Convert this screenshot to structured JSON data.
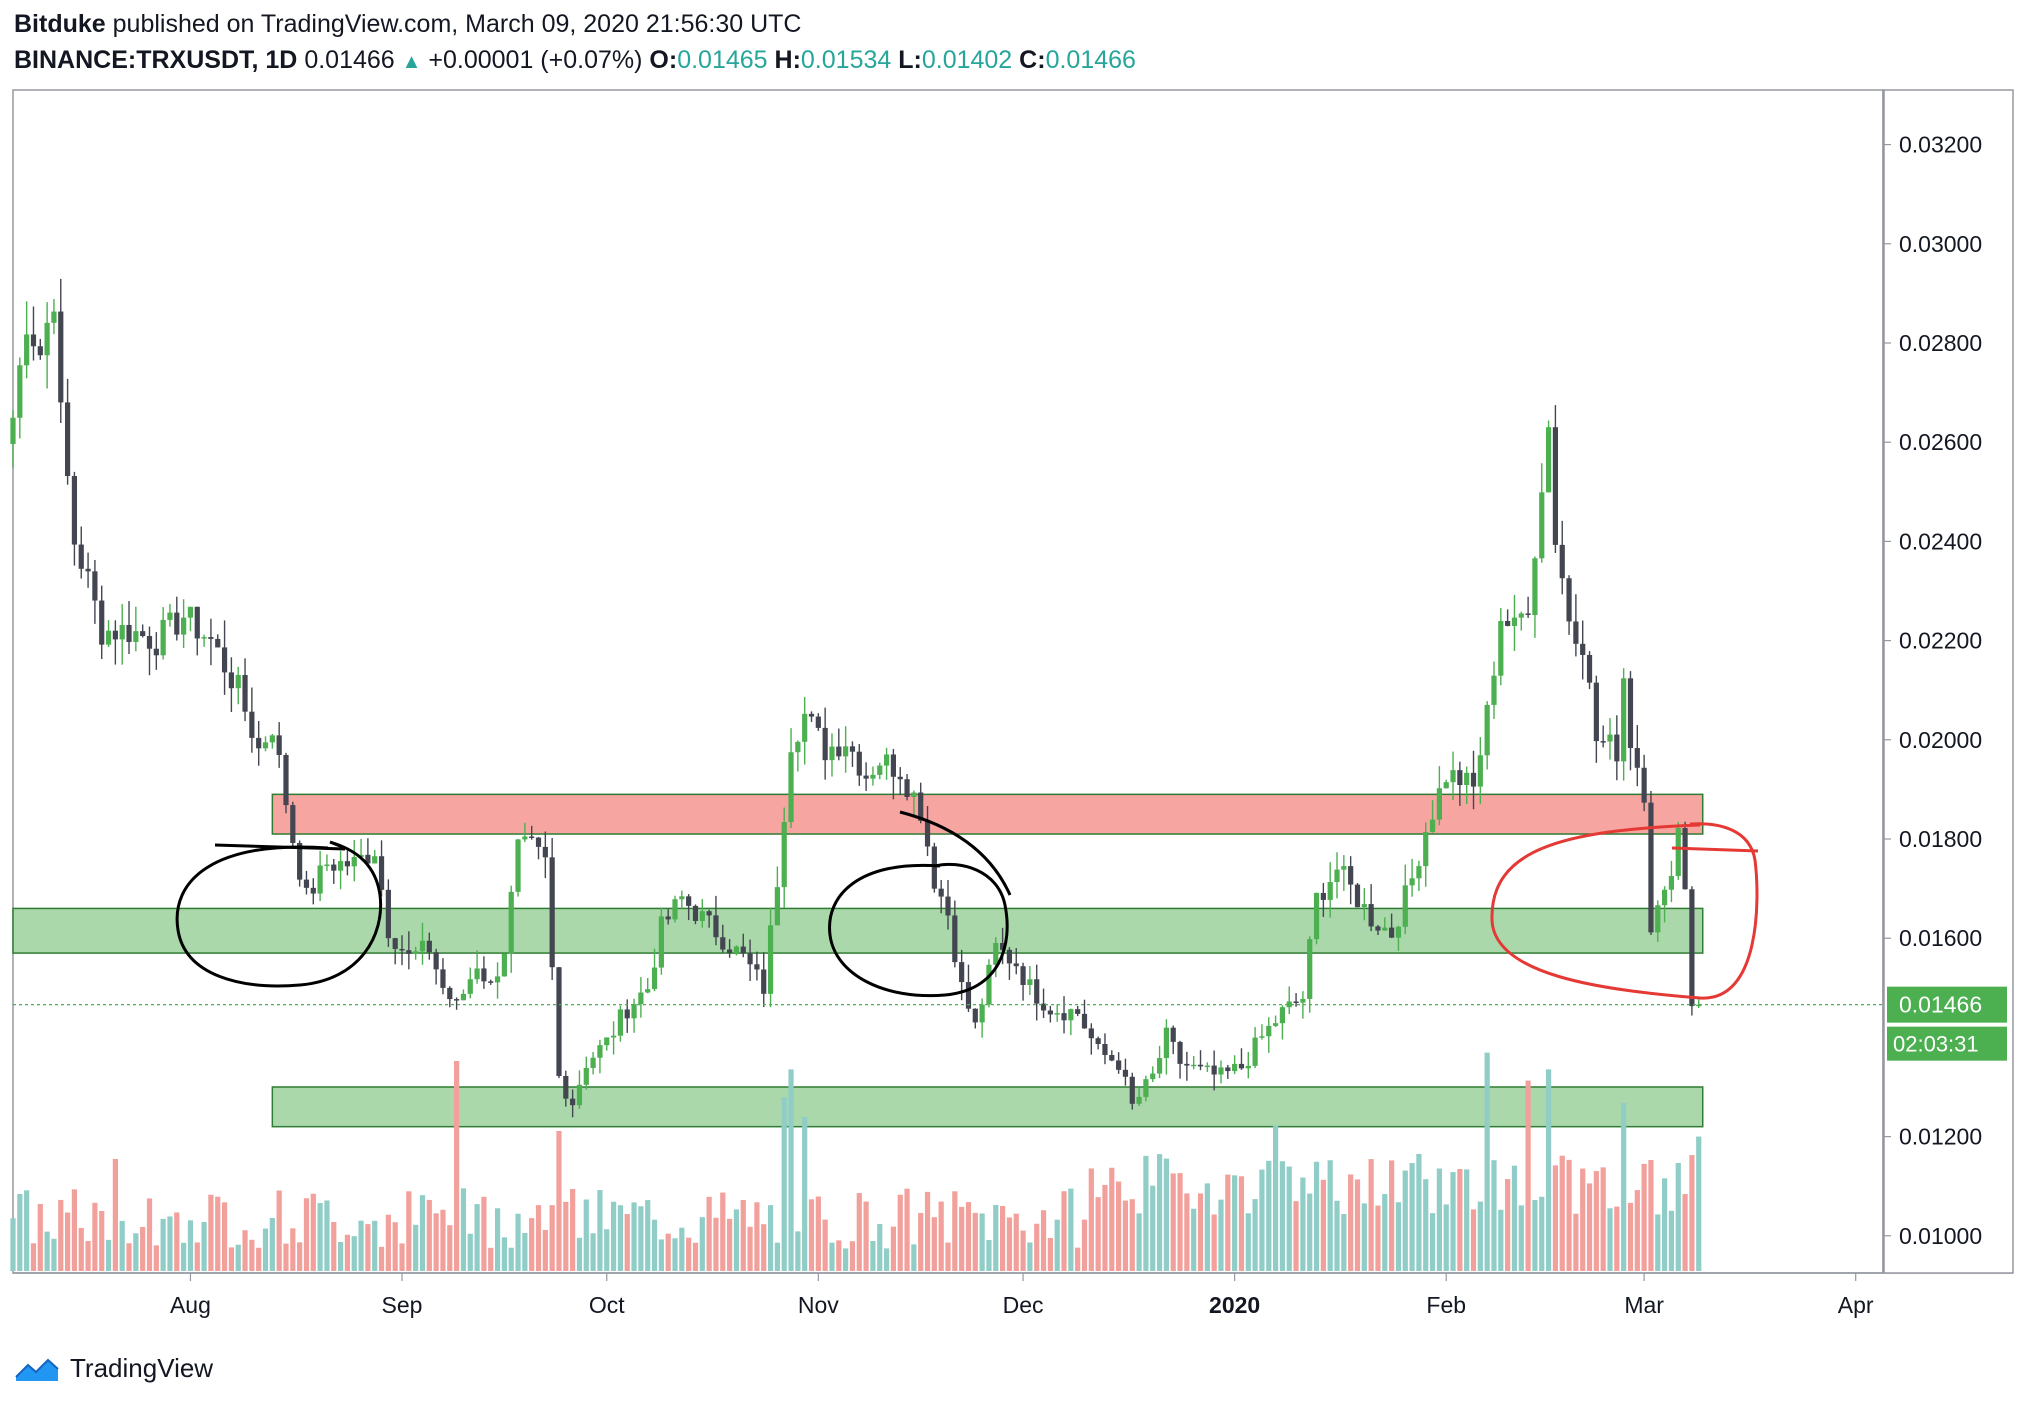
{
  "header": {
    "author": "Bitduke",
    "published_text": "published on TradingView.com, March 09, 2020 21:56:30 UTC",
    "symbol": "BINANCE:TRXUSDT, 1D",
    "last": "0.01466",
    "change_arrow": "▲",
    "change": "+0.00001 (+0.07%)",
    "o_label": "O:",
    "o_value": "0.01465",
    "h_label": "H:",
    "h_value": "0.01534",
    "l_label": "L:",
    "l_value": "0.01402",
    "c_label": "C:",
    "c_value": "0.01466"
  },
  "footer": {
    "brand": "TradingView",
    "logo_icon": "tradingview-logo-icon"
  },
  "colors": {
    "up": "#4caf50",
    "down": "#434651",
    "vol_up": "#8fcdc6",
    "vol_down": "#f2a09b",
    "resistance": "#f5a09b",
    "support": "#a5d6a7",
    "zone_border": "#2e7d32",
    "price_label_bg": "#4caf50",
    "current_line": "#4caf50",
    "circle_black": "#000000",
    "circle_red": "#e53935"
  },
  "chart_data": {
    "type": "candlestick",
    "symbol": "BINANCE:TRXUSDT",
    "interval": "1D",
    "ylim": [
      0.00925,
      0.0331
    ],
    "y_ticks": [
      0.012,
      0.016,
      0.018,
      0.02,
      0.022,
      0.024,
      0.026,
      0.028,
      0.03,
      0.032
    ],
    "y_tick_labels": [
      "0.01200",
      "0.01600",
      "0.01800",
      "0.02000",
      "0.02200",
      "0.02400",
      "0.02600",
      "0.02800",
      "0.03000",
      "0.03200"
    ],
    "extra_y_tick": {
      "value": 0.01,
      "label": "0.01000"
    },
    "x_start": "2019-07-06",
    "x_end": "2020-04-05",
    "x_ticks": [
      {
        "date": "2019-08-01",
        "label": "Aug",
        "bold": false
      },
      {
        "date": "2019-09-01",
        "label": "Sep",
        "bold": false
      },
      {
        "date": "2019-10-01",
        "label": "Oct",
        "bold": false
      },
      {
        "date": "2019-11-01",
        "label": "Nov",
        "bold": false
      },
      {
        "date": "2019-12-01",
        "label": "Dec",
        "bold": false
      },
      {
        "date": "2020-01-01",
        "label": "2020",
        "bold": true
      },
      {
        "date": "2020-02-01",
        "label": "Feb",
        "bold": false
      },
      {
        "date": "2020-03-01",
        "label": "Mar",
        "bold": false
      },
      {
        "date": "2020-04-01",
        "label": "Apr",
        "bold": false
      }
    ],
    "first_date": "2019-07-06",
    "close_path": [
      [
        "2019-07-06",
        0.0265
      ],
      [
        "2019-07-08",
        0.0285
      ],
      [
        "2019-07-10",
        0.0278
      ],
      [
        "2019-07-12",
        0.029
      ],
      [
        "2019-07-13",
        0.0265
      ],
      [
        "2019-07-15",
        0.024
      ],
      [
        "2019-07-17",
        0.0232
      ],
      [
        "2019-07-19",
        0.0222
      ],
      [
        "2019-07-23",
        0.0222
      ],
      [
        "2019-07-27",
        0.022
      ],
      [
        "2019-07-31",
        0.0225
      ],
      [
        "2019-08-04",
        0.022
      ],
      [
        "2019-08-08",
        0.021
      ],
      [
        "2019-08-11",
        0.0198
      ],
      [
        "2019-08-13",
        0.0203
      ],
      [
        "2019-08-16",
        0.018
      ],
      [
        "2019-08-18",
        0.0168
      ],
      [
        "2019-08-21",
        0.0175
      ],
      [
        "2019-08-25",
        0.0175
      ],
      [
        "2019-08-28",
        0.0178
      ],
      [
        "2019-08-30",
        0.0162
      ],
      [
        "2019-09-02",
        0.0156
      ],
      [
        "2019-09-05",
        0.0158
      ],
      [
        "2019-09-07",
        0.015
      ],
      [
        "2019-09-09",
        0.0146
      ],
      [
        "2019-09-12",
        0.0155
      ],
      [
        "2019-09-14",
        0.015
      ],
      [
        "2019-09-16",
        0.0158
      ],
      [
        "2019-09-18",
        0.0178
      ],
      [
        "2019-09-20",
        0.0178
      ],
      [
        "2019-09-22",
        0.0175
      ],
      [
        "2019-09-24",
        0.0132
      ],
      [
        "2019-09-26",
        0.0127
      ],
      [
        "2019-09-28",
        0.0135
      ],
      [
        "2019-10-01",
        0.0139
      ],
      [
        "2019-10-04",
        0.0146
      ],
      [
        "2019-10-07",
        0.015
      ],
      [
        "2019-10-09",
        0.0162
      ],
      [
        "2019-10-12",
        0.0168
      ],
      [
        "2019-10-15",
        0.0164
      ],
      [
        "2019-10-18",
        0.016
      ],
      [
        "2019-10-21",
        0.0156
      ],
      [
        "2019-10-24",
        0.015
      ],
      [
        "2019-10-26",
        0.0172
      ],
      [
        "2019-10-28",
        0.02
      ],
      [
        "2019-10-30",
        0.0205
      ],
      [
        "2019-11-02",
        0.0198
      ],
      [
        "2019-11-05",
        0.02
      ],
      [
        "2019-11-08",
        0.0193
      ],
      [
        "2019-11-10",
        0.0196
      ],
      [
        "2019-11-13",
        0.0194
      ],
      [
        "2019-11-16",
        0.0186
      ],
      [
        "2019-11-18",
        0.0172
      ],
      [
        "2019-11-20",
        0.0165
      ],
      [
        "2019-11-22",
        0.015
      ],
      [
        "2019-11-24",
        0.0142
      ],
      [
        "2019-11-27",
        0.0158
      ],
      [
        "2019-11-30",
        0.0155
      ],
      [
        "2019-12-02",
        0.015
      ],
      [
        "2019-12-05",
        0.0146
      ],
      [
        "2019-12-09",
        0.0145
      ],
      [
        "2019-12-12",
        0.0137
      ],
      [
        "2019-12-15",
        0.0135
      ],
      [
        "2019-12-17",
        0.0126
      ],
      [
        "2019-12-20",
        0.0132
      ],
      [
        "2019-12-22",
        0.014
      ],
      [
        "2019-12-24",
        0.0135
      ],
      [
        "2019-12-27",
        0.0133
      ],
      [
        "2019-12-30",
        0.0132
      ],
      [
        "2020-01-02",
        0.0134
      ],
      [
        "2020-01-05",
        0.014
      ],
      [
        "2020-01-08",
        0.0145
      ],
      [
        "2020-01-11",
        0.0148
      ],
      [
        "2020-01-13",
        0.0168
      ],
      [
        "2020-01-16",
        0.0174
      ],
      [
        "2020-01-18",
        0.017
      ],
      [
        "2020-01-21",
        0.0164
      ],
      [
        "2020-01-24",
        0.0161
      ],
      [
        "2020-01-27",
        0.0172
      ],
      [
        "2020-01-29",
        0.0182
      ],
      [
        "2020-02-01",
        0.0193
      ],
      [
        "2020-02-03",
        0.0192
      ],
      [
        "2020-02-05",
        0.019
      ],
      [
        "2020-02-07",
        0.0205
      ],
      [
        "2020-02-09",
        0.0225
      ],
      [
        "2020-02-11",
        0.0222
      ],
      [
        "2020-02-13",
        0.0228
      ],
      [
        "2020-02-15",
        0.025
      ],
      [
        "2020-02-16",
        0.0265
      ],
      [
        "2020-02-17",
        0.024
      ],
      [
        "2020-02-19",
        0.0225
      ],
      [
        "2020-02-21",
        0.022
      ],
      [
        "2020-02-23",
        0.02
      ],
      [
        "2020-02-26",
        0.0198
      ],
      [
        "2020-02-27",
        0.0213
      ],
      [
        "2020-02-28",
        0.02
      ],
      [
        "2020-03-01",
        0.019
      ],
      [
        "2020-03-02",
        0.0163
      ],
      [
        "2020-03-04",
        0.0168
      ],
      [
        "2020-03-05",
        0.0175
      ],
      [
        "2020-03-06",
        0.0182
      ],
      [
        "2020-03-07",
        0.0171
      ],
      [
        "2020-03-08",
        0.0147
      ],
      [
        "2020-03-09",
        0.01466
      ]
    ],
    "volume_spikes": [
      [
        "2019-07-21",
        0.4
      ],
      [
        "2019-09-09",
        0.75
      ],
      [
        "2019-09-24",
        0.5
      ],
      [
        "2019-10-27",
        0.62
      ],
      [
        "2019-10-28",
        0.72
      ],
      [
        "2019-10-30",
        0.55
      ],
      [
        "2020-01-07",
        0.52
      ],
      [
        "2020-02-07",
        0.78
      ],
      [
        "2020-02-13",
        0.68
      ],
      [
        "2020-02-16",
        0.72
      ],
      [
        "2020-02-27",
        0.6
      ],
      [
        "2020-03-09",
        0.48
      ]
    ],
    "zones": [
      {
        "name": "resistance",
        "from": 0.0181,
        "to": 0.0189,
        "start": "2019-08-13",
        "end": "2020-03-09"
      },
      {
        "name": "support-upper",
        "from": 0.0157,
        "to": 0.0166,
        "start": "2019-07-06",
        "end": "2020-03-09"
      },
      {
        "name": "support-lower",
        "from": 0.0122,
        "to": 0.013,
        "start": "2019-08-13",
        "end": "2020-03-09"
      }
    ],
    "current_price": 0.01466,
    "current_price_label": "0.01466",
    "countdown": "02:03:31"
  }
}
